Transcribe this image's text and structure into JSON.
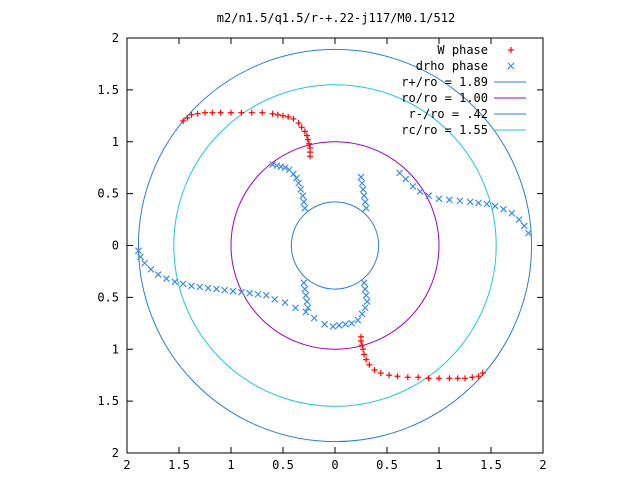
{
  "chart_data": {
    "type": "scatter",
    "title": "m2/n1.5/q1.5/r-+.22-j117/M0.1/512",
    "xlim": [
      2,
      -2
    ],
    "ylim": [
      2,
      -2
    ],
    "xlabel": "",
    "ylabel": "",
    "x_ticks": [
      {
        "value": 2,
        "label": "2"
      },
      {
        "value": 1.5,
        "label": "1.5"
      },
      {
        "value": 1,
        "label": "1"
      },
      {
        "value": 0.5,
        "label": "0.5"
      },
      {
        "value": 0,
        "label": "0"
      },
      {
        "value": -0.5,
        "label": "0.5"
      },
      {
        "value": -1,
        "label": "1"
      },
      {
        "value": -1.5,
        "label": "1.5"
      },
      {
        "value": -2,
        "label": "2"
      }
    ],
    "y_ticks": [
      {
        "value": 2,
        "label": "2"
      },
      {
        "value": 1.5,
        "label": "1.5"
      },
      {
        "value": 1,
        "label": "1"
      },
      {
        "value": 0.5,
        "label": "0.5"
      },
      {
        "value": 0,
        "label": "0"
      },
      {
        "value": -0.5,
        "label": "0.5"
      },
      {
        "value": -1,
        "label": "1"
      },
      {
        "value": -1.5,
        "label": "1.5"
      },
      {
        "value": -2,
        "label": "2"
      }
    ],
    "grid": false,
    "legend_position": "top-right",
    "legend": [
      {
        "label": "W phase",
        "marker": "+",
        "color": "#ff0000"
      },
      {
        "label": "drho phase",
        "marker": "x",
        "color": "#3a8ee6"
      },
      {
        "label": "r+/ro = 1.89",
        "marker": "line",
        "color": "#2a7fd4"
      },
      {
        "label": "ro/ro = 1.00",
        "marker": "line",
        "color": "#a000c0"
      },
      {
        "label": "r-/ro = .42",
        "marker": "line",
        "color": "#2a7fd4"
      },
      {
        "label": "rc/ro = 1.55",
        "marker": "line",
        "color": "#20c8d8"
      }
    ],
    "circles": [
      {
        "name": "r+/ro",
        "radius": 1.89,
        "color": "#2a7fd4"
      },
      {
        "name": "ro/ro",
        "radius": 1.0,
        "color": "#a000c0"
      },
      {
        "name": "r-/ro",
        "radius": 0.42,
        "color": "#2a7fd4"
      },
      {
        "name": "rc/ro",
        "radius": 1.55,
        "color": "#20c8d8"
      }
    ],
    "series": [
      {
        "name": "W phase",
        "marker": "+",
        "color": "#ff0000",
        "points": [
          [
            1.46,
            1.2
          ],
          [
            1.42,
            1.23
          ],
          [
            1.38,
            1.26
          ],
          [
            1.32,
            1.27
          ],
          [
            1.25,
            1.28
          ],
          [
            1.18,
            1.28
          ],
          [
            1.1,
            1.28
          ],
          [
            1.0,
            1.28
          ],
          [
            0.9,
            1.28
          ],
          [
            0.8,
            1.28
          ],
          [
            0.7,
            1.28
          ],
          [
            0.6,
            1.27
          ],
          [
            0.55,
            1.26
          ],
          [
            0.5,
            1.25
          ],
          [
            0.45,
            1.24
          ],
          [
            0.4,
            1.22
          ],
          [
            0.35,
            1.18
          ],
          [
            0.32,
            1.14
          ],
          [
            0.29,
            1.1
          ],
          [
            0.27,
            1.06
          ],
          [
            0.26,
            1.02
          ],
          [
            0.25,
            0.98
          ],
          [
            0.24,
            0.94
          ],
          [
            0.24,
            0.9
          ],
          [
            0.24,
            0.86
          ],
          [
            -1.42,
            -1.23
          ],
          [
            -1.38,
            -1.26
          ],
          [
            -1.32,
            -1.27
          ],
          [
            -1.25,
            -1.28
          ],
          [
            -1.18,
            -1.28
          ],
          [
            -1.1,
            -1.28
          ],
          [
            -1.0,
            -1.28
          ],
          [
            -0.9,
            -1.28
          ],
          [
            -0.8,
            -1.27
          ],
          [
            -0.7,
            -1.27
          ],
          [
            -0.6,
            -1.26
          ],
          [
            -0.52,
            -1.25
          ],
          [
            -0.44,
            -1.23
          ],
          [
            -0.38,
            -1.2
          ],
          [
            -0.33,
            -1.15
          ],
          [
            -0.3,
            -1.1
          ],
          [
            -0.28,
            -1.05
          ],
          [
            -0.27,
            -1.0
          ],
          [
            -0.26,
            -0.96
          ],
          [
            -0.25,
            -0.92
          ],
          [
            -0.25,
            -0.88
          ]
        ]
      },
      {
        "name": "drho phase",
        "marker": "x",
        "color": "#3a8ee6",
        "points": [
          [
            0.29,
            0.36
          ],
          [
            0.3,
            0.42
          ],
          [
            0.31,
            0.48
          ],
          [
            0.33,
            0.54
          ],
          [
            0.35,
            0.6
          ],
          [
            0.37,
            0.65
          ],
          [
            0.4,
            0.69
          ],
          [
            0.44,
            0.73
          ],
          [
            0.48,
            0.75
          ],
          [
            0.52,
            0.76
          ],
          [
            0.56,
            0.77
          ],
          [
            0.6,
            0.78
          ],
          [
            -0.62,
            0.7
          ],
          [
            -0.68,
            0.64
          ],
          [
            -0.75,
            0.57
          ],
          [
            -0.82,
            0.52
          ],
          [
            -0.9,
            0.48
          ],
          [
            -1.0,
            0.45
          ],
          [
            -1.1,
            0.44
          ],
          [
            -1.2,
            0.43
          ],
          [
            -1.3,
            0.42
          ],
          [
            -1.38,
            0.41
          ],
          [
            -1.46,
            0.4
          ],
          [
            -1.54,
            0.38
          ],
          [
            -1.62,
            0.35
          ],
          [
            -1.7,
            0.31
          ],
          [
            -1.77,
            0.25
          ],
          [
            -1.82,
            0.19
          ],
          [
            -1.86,
            0.12
          ],
          [
            -0.28,
            -0.36
          ],
          [
            -0.29,
            -0.42
          ],
          [
            -0.3,
            -0.48
          ],
          [
            -0.31,
            -0.54
          ],
          [
            -0.29,
            -0.6
          ],
          [
            -0.26,
            -0.66
          ],
          [
            -0.22,
            -0.72
          ],
          [
            -0.16,
            -0.75
          ],
          [
            -0.1,
            -0.76
          ],
          [
            -0.04,
            -0.77
          ],
          [
            0.02,
            -0.78
          ],
          [
            0.1,
            -0.76
          ],
          [
            0.2,
            -0.7
          ],
          [
            0.28,
            -0.64
          ],
          [
            0.38,
            -0.6
          ],
          [
            0.48,
            -0.55
          ],
          [
            0.58,
            -0.52
          ],
          [
            0.66,
            -0.48
          ],
          [
            0.74,
            -0.47
          ],
          [
            0.82,
            -0.46
          ],
          [
            0.9,
            -0.45
          ],
          [
            0.98,
            -0.44
          ],
          [
            1.06,
            -0.43
          ],
          [
            1.14,
            -0.42
          ],
          [
            1.22,
            -0.41
          ],
          [
            1.3,
            -0.4
          ],
          [
            1.38,
            -0.39
          ],
          [
            1.46,
            -0.37
          ],
          [
            1.54,
            -0.35
          ],
          [
            1.62,
            -0.32
          ],
          [
            1.7,
            -0.28
          ],
          [
            1.77,
            -0.23
          ],
          [
            1.83,
            -0.17
          ],
          [
            1.87,
            -0.11
          ],
          [
            1.89,
            -0.05
          ],
          [
            -0.3,
            0.36
          ],
          [
            -0.29,
            0.42
          ],
          [
            -0.28,
            0.48
          ],
          [
            -0.27,
            0.54
          ],
          [
            -0.26,
            0.6
          ],
          [
            -0.25,
            0.66
          ],
          [
            0.3,
            -0.36
          ],
          [
            0.29,
            -0.42
          ],
          [
            0.28,
            -0.48
          ],
          [
            0.27,
            -0.54
          ],
          [
            0.26,
            -0.6
          ]
        ]
      }
    ]
  }
}
